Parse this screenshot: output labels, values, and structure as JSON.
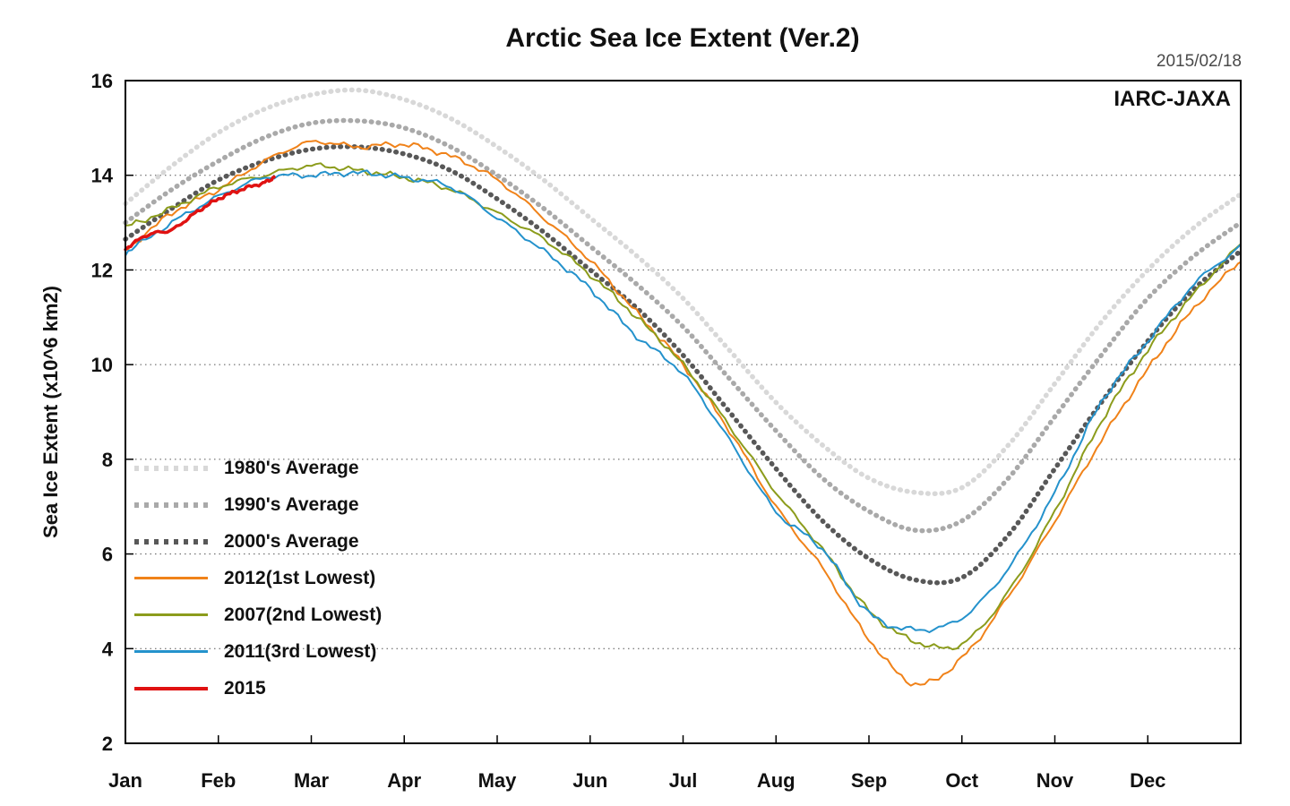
{
  "header": {
    "title": "Arctic Sea Ice Extent (Ver.2)",
    "date": "2015/02/18",
    "source": "IARC-JAXA"
  },
  "axes": {
    "y_label": "Sea Ice Extent (x10^6 km2)",
    "y_ticks": [
      2,
      4,
      6,
      8,
      10,
      12,
      14,
      16
    ],
    "months": [
      "Jan",
      "Feb",
      "Mar",
      "Apr",
      "May",
      "Jun",
      "Jul",
      "Aug",
      "Sep",
      "Oct",
      "Nov",
      "Dec"
    ]
  },
  "chart_data": {
    "type": "line",
    "title": "Arctic Sea Ice Extent (Ver.2)",
    "ylabel": "Sea Ice Extent (x10^6 km2)",
    "ylim": [
      2,
      16
    ],
    "x_unit": "months since Jan 1 (0 = Jan 1, 12 = Dec 31)",
    "grid": "horizontal-dotted",
    "legend_position": "middle-left",
    "series": [
      {
        "name": "1980's Average",
        "color": "#d8d8d8",
        "style": "dotted",
        "width": 5.5,
        "x": [
          0,
          0.5,
          1,
          1.5,
          2,
          2.5,
          3,
          3.5,
          4,
          4.5,
          5,
          5.5,
          6,
          6.5,
          7,
          7.5,
          8,
          8.5,
          9,
          9.5,
          10,
          10.5,
          11,
          11.5,
          12
        ],
        "values": [
          13.4,
          14.2,
          14.9,
          15.4,
          15.7,
          15.8,
          15.6,
          15.2,
          14.6,
          13.9,
          13.1,
          12.3,
          11.4,
          10.3,
          9.2,
          8.3,
          7.6,
          7.3,
          7.4,
          8.3,
          9.6,
          10.9,
          12.0,
          12.9,
          13.6
        ]
      },
      {
        "name": "1990's Average",
        "color": "#a9a9a9",
        "style": "dotted",
        "width": 5.5,
        "x": [
          0,
          0.5,
          1,
          1.5,
          2,
          2.5,
          3,
          3.5,
          4,
          4.5,
          5,
          5.5,
          6,
          6.5,
          7,
          7.5,
          8,
          8.5,
          9,
          9.5,
          10,
          10.5,
          11,
          11.5,
          12
        ],
        "values": [
          13.0,
          13.7,
          14.3,
          14.8,
          15.1,
          15.15,
          15.0,
          14.6,
          14.0,
          13.3,
          12.5,
          11.7,
          10.8,
          9.7,
          8.6,
          7.6,
          6.9,
          6.5,
          6.7,
          7.6,
          8.9,
          10.2,
          11.4,
          12.3,
          13.0
        ]
      },
      {
        "name": "2000's Average",
        "color": "#585858",
        "style": "dotted",
        "width": 5.5,
        "x": [
          0,
          0.5,
          1,
          1.5,
          2,
          2.5,
          3,
          3.5,
          4,
          4.5,
          5,
          5.5,
          6,
          6.5,
          7,
          7.5,
          8,
          8.5,
          9,
          9.5,
          10,
          10.5,
          11,
          11.5,
          12
        ],
        "values": [
          12.65,
          13.3,
          13.9,
          14.3,
          14.55,
          14.6,
          14.45,
          14.1,
          13.5,
          12.8,
          12.0,
          11.2,
          10.2,
          9.0,
          7.8,
          6.7,
          5.9,
          5.45,
          5.5,
          6.4,
          7.8,
          9.2,
          10.5,
          11.6,
          12.4
        ]
      },
      {
        "name": "2012(1st Lowest)",
        "color": "#f08219",
        "style": "solid",
        "width": 2,
        "x": [
          0,
          0.5,
          1,
          1.5,
          2,
          2.5,
          3,
          3.5,
          4,
          4.5,
          5,
          5.5,
          6,
          6.5,
          7,
          7.5,
          8,
          8.5,
          9,
          9.5,
          10,
          10.5,
          11,
          11.5,
          12
        ],
        "values": [
          12.4,
          13.2,
          13.7,
          14.3,
          14.7,
          14.6,
          14.65,
          14.4,
          13.9,
          13.1,
          12.2,
          11.1,
          10.0,
          8.6,
          7.0,
          5.7,
          4.2,
          3.25,
          3.8,
          5.1,
          6.7,
          8.4,
          9.9,
          11.2,
          12.2
        ]
      },
      {
        "name": "2007(2nd Lowest)",
        "color": "#8c9c1c",
        "style": "solid",
        "width": 2,
        "x": [
          0,
          0.5,
          1,
          1.5,
          2,
          2.5,
          3,
          3.5,
          4,
          4.5,
          5,
          5.5,
          6,
          6.5,
          7,
          7.5,
          8,
          8.5,
          9,
          9.5,
          10,
          10.5,
          11,
          11.5,
          12
        ],
        "values": [
          12.9,
          13.3,
          13.75,
          14.0,
          14.2,
          14.1,
          13.95,
          13.7,
          13.2,
          12.65,
          11.9,
          11.0,
          10.0,
          8.7,
          7.3,
          6.1,
          4.8,
          4.15,
          4.1,
          5.2,
          6.9,
          8.8,
          10.3,
          11.5,
          12.55
        ]
      },
      {
        "name": "2011(3rd Lowest)",
        "color": "#2492cc",
        "style": "solid",
        "width": 2,
        "x": [
          0,
          0.5,
          1,
          1.5,
          2,
          2.5,
          3,
          3.5,
          4,
          4.5,
          5,
          5.5,
          6,
          6.5,
          7,
          7.5,
          8,
          8.5,
          9,
          9.5,
          10,
          10.5,
          11,
          11.5,
          12
        ],
        "values": [
          12.35,
          13.0,
          13.55,
          13.95,
          14.0,
          14.05,
          13.95,
          13.75,
          13.1,
          12.4,
          11.6,
          10.6,
          9.8,
          8.4,
          6.9,
          6.1,
          4.75,
          4.4,
          4.65,
          5.7,
          7.3,
          9.2,
          10.5,
          11.7,
          12.5
        ]
      },
      {
        "name": "2015",
        "color": "#e01212",
        "style": "solid",
        "width": 3.5,
        "x": [
          0,
          0.25,
          0.5,
          0.75,
          1,
          1.25,
          1.5,
          1.6
        ],
        "values": [
          12.45,
          12.75,
          12.85,
          13.2,
          13.5,
          13.7,
          13.85,
          13.95
        ]
      }
    ]
  }
}
